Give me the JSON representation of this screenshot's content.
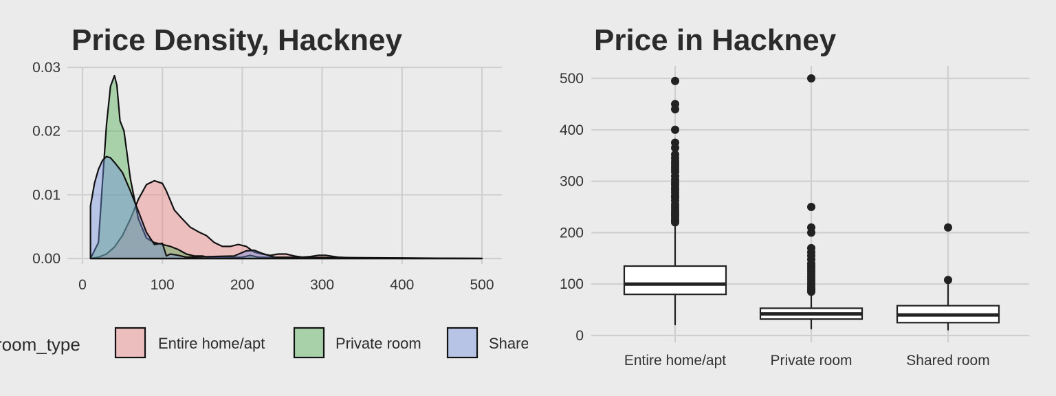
{
  "chart_data": [
    {
      "type": "area",
      "title": "Price Density, Hackney",
      "xlabel": "",
      "ylabel": "",
      "xlim": [
        0,
        500
      ],
      "ylim": [
        0,
        0.03
      ],
      "x_ticks": [
        "0",
        "100",
        "200",
        "300",
        "400",
        "500"
      ],
      "y_ticks": [
        "0.00",
        "0.01",
        "0.02",
        "0.03"
      ],
      "legend": {
        "title": "room_type",
        "position": "bottom"
      },
      "series": [
        {
          "name": "Entire home/apt",
          "color": "#f08080",
          "points": [
            [
              10,
              0
            ],
            [
              20,
              0.0002
            ],
            [
              30,
              0.0007
            ],
            [
              40,
              0.0018
            ],
            [
              50,
              0.0036
            ],
            [
              60,
              0.0062
            ],
            [
              70,
              0.0093
            ],
            [
              80,
              0.0116
            ],
            [
              90,
              0.0122
            ],
            [
              100,
              0.0118
            ],
            [
              105,
              0.0106
            ],
            [
              115,
              0.0076
            ],
            [
              125,
              0.0062
            ],
            [
              135,
              0.0049
            ],
            [
              145,
              0.0042
            ],
            [
              155,
              0.0036
            ],
            [
              165,
              0.0025
            ],
            [
              175,
              0.0019
            ],
            [
              185,
              0.0019
            ],
            [
              195,
              0.0022
            ],
            [
              205,
              0.0019
            ],
            [
              215,
              0.001
            ],
            [
              225,
              0.0007
            ],
            [
              235,
              0.0005
            ],
            [
              245,
              0.0007
            ],
            [
              255,
              0.0007
            ],
            [
              265,
              0.0004
            ],
            [
              275,
              0.0002
            ],
            [
              285,
              0.0003
            ],
            [
              295,
              0.0005
            ],
            [
              305,
              0.0005
            ],
            [
              320,
              0.0002
            ],
            [
              340,
              0.0001
            ],
            [
              400,
              5e-05
            ],
            [
              500,
              0
            ]
          ]
        },
        {
          "name": "Private room",
          "color": "#4caf50",
          "points": [
            [
              10,
              0
            ],
            [
              20,
              0.0025
            ],
            [
              25,
              0.012
            ],
            [
              30,
              0.021
            ],
            [
              35,
              0.027
            ],
            [
              40,
              0.0287
            ],
            [
              43,
              0.0272
            ],
            [
              47,
              0.0216
            ],
            [
              52,
              0.02
            ],
            [
              60,
              0.0125
            ],
            [
              70,
              0.0062
            ],
            [
              80,
              0.0032
            ],
            [
              90,
              0.0025
            ],
            [
              100,
              0.0022
            ],
            [
              110,
              0.0019
            ],
            [
              120,
              0.0014
            ],
            [
              130,
              0.0007
            ],
            [
              140,
              0.0004
            ],
            [
              150,
              0.0004
            ],
            [
              160,
              0.0001
            ],
            [
              200,
              0.0002
            ],
            [
              210,
              0.0005
            ],
            [
              220,
              0.0002
            ],
            [
              250,
              0.0001
            ],
            [
              500,
              0
            ]
          ]
        },
        {
          "name": "Shared room",
          "color": "#6f8fe0",
          "points": [
            [
              10,
              0.0082
            ],
            [
              15,
              0.0118
            ],
            [
              20,
              0.014
            ],
            [
              25,
              0.0154
            ],
            [
              30,
              0.016
            ],
            [
              35,
              0.0158
            ],
            [
              40,
              0.0151
            ],
            [
              50,
              0.0135
            ],
            [
              60,
              0.0106
            ],
            [
              70,
              0.0074
            ],
            [
              80,
              0.0041
            ],
            [
              90,
              0.0022
            ],
            [
              100,
              0.0024
            ],
            [
              105,
              0.0004
            ],
            [
              110,
              0.0007
            ],
            [
              120,
              0.0005
            ],
            [
              130,
              0.0002
            ],
            [
              190,
              0.0004
            ],
            [
              205,
              0.0012
            ],
            [
              215,
              0.0013
            ],
            [
              225,
              0.0008
            ],
            [
              240,
              0.0002
            ],
            [
              500,
              0
            ]
          ]
        }
      ]
    },
    {
      "type": "boxplot",
      "title": "Price in Hackney",
      "xlabel": "",
      "ylabel": "",
      "ylim": [
        0,
        500
      ],
      "y_ticks": [
        "0",
        "100",
        "200",
        "300",
        "400",
        "500"
      ],
      "categories": [
        "Entire home/apt",
        "Private room",
        "Shared room"
      ],
      "boxes": [
        {
          "whisker_low": 20,
          "q1": 80,
          "median": 100,
          "q3": 135,
          "whisker_high": 215,
          "outliers": [
            220,
            223,
            227,
            232,
            236,
            240,
            245,
            250,
            255,
            262,
            268,
            272,
            278,
            283,
            287,
            293,
            297,
            303,
            310,
            318,
            323,
            328,
            333,
            338,
            345,
            352,
            365,
            375,
            400,
            440,
            450,
            495
          ]
        },
        {
          "whisker_low": 12,
          "q1": 32,
          "median": 42,
          "q3": 53,
          "whisker_high": 82,
          "outliers": [
            85,
            88,
            91,
            95,
            100,
            105,
            110,
            115,
            120,
            125,
            130,
            135,
            140,
            148,
            155,
            162,
            170,
            200,
            210,
            250,
            500
          ]
        },
        {
          "whisker_low": 10,
          "q1": 25,
          "median": 40,
          "q3": 58,
          "whisker_high": 100,
          "outliers": [
            108,
            210
          ]
        }
      ]
    }
  ]
}
